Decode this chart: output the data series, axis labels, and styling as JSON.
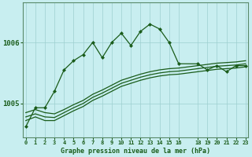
{
  "bg_color": "#c8eef0",
  "grid_color": "#9ecfcf",
  "line_color": "#1a5c1a",
  "title": "Graphe pression niveau de la mer (hPa)",
  "ylabel_ticks": [
    1005,
    1006
  ],
  "xlim": [
    -0.3,
    23.3
  ],
  "ylim": [
    1004.45,
    1006.65
  ],
  "series_main": {
    "x": [
      0,
      1,
      2,
      3,
      4,
      5,
      6,
      7,
      8,
      9,
      10,
      11,
      12,
      13,
      14,
      15,
      16,
      18,
      19,
      20,
      21,
      22,
      23
    ],
    "y": [
      1004.62,
      1004.93,
      1004.93,
      1005.2,
      1005.55,
      1005.7,
      1005.8,
      1006.0,
      1005.75,
      1006.0,
      1006.15,
      1005.95,
      1006.18,
      1006.3,
      1006.22,
      1006.0,
      1005.65,
      1005.65,
      1005.55,
      1005.62,
      1005.52,
      1005.62,
      1005.62
    ]
  },
  "series_flat1": {
    "x": [
      0,
      1,
      2,
      3,
      4,
      5,
      6,
      7,
      8,
      9,
      10,
      11,
      12,
      13,
      14,
      15,
      16,
      18,
      19,
      20,
      21,
      22,
      23
    ],
    "y": [
      1004.72,
      1004.78,
      1004.72,
      1004.72,
      1004.8,
      1004.88,
      1004.95,
      1005.05,
      1005.12,
      1005.2,
      1005.28,
      1005.33,
      1005.38,
      1005.42,
      1005.45,
      1005.47,
      1005.48,
      1005.52,
      1005.54,
      1005.56,
      1005.57,
      1005.58,
      1005.6
    ]
  },
  "series_flat2": {
    "x": [
      0,
      1,
      2,
      3,
      4,
      5,
      6,
      7,
      8,
      9,
      10,
      11,
      12,
      13,
      14,
      15,
      16,
      18,
      19,
      20,
      21,
      22,
      23
    ],
    "y": [
      1004.78,
      1004.83,
      1004.78,
      1004.77,
      1004.85,
      1004.93,
      1005.0,
      1005.1,
      1005.17,
      1005.25,
      1005.33,
      1005.38,
      1005.43,
      1005.47,
      1005.5,
      1005.52,
      1005.53,
      1005.57,
      1005.59,
      1005.61,
      1005.62,
      1005.63,
      1005.65
    ]
  },
  "series_flat3": {
    "x": [
      0,
      1,
      2,
      3,
      4,
      5,
      6,
      7,
      8,
      9,
      10,
      11,
      12,
      13,
      14,
      15,
      16,
      18,
      19,
      20,
      21,
      22,
      23
    ],
    "y": [
      1004.85,
      1004.9,
      1004.85,
      1004.83,
      1004.9,
      1004.98,
      1005.05,
      1005.15,
      1005.22,
      1005.3,
      1005.38,
      1005.43,
      1005.48,
      1005.52,
      1005.55,
      1005.57,
      1005.58,
      1005.62,
      1005.64,
      1005.66,
      1005.67,
      1005.68,
      1005.7
    ]
  },
  "xticks": [
    0,
    1,
    2,
    3,
    4,
    5,
    6,
    7,
    8,
    9,
    10,
    11,
    12,
    13,
    14,
    15,
    16,
    18,
    19,
    20,
    21,
    22,
    23
  ],
  "xtick_labels": [
    "0",
    "1",
    "2",
    "3",
    "4",
    "5",
    "6",
    "7",
    "8",
    "9",
    "10",
    "11",
    "12",
    "13",
    "14",
    "15",
    "16",
    "18",
    "19",
    "20",
    "21",
    "22",
    "23"
  ]
}
